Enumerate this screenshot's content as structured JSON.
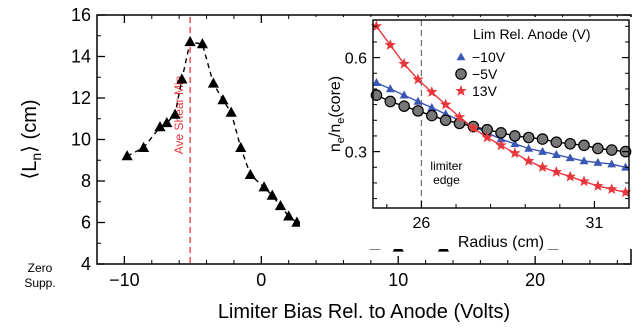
{
  "chart_data": [
    {
      "type": "line",
      "title": "",
      "xlabel": "Limiter Bias Rel. to Anode (Volts)",
      "ylabel": "⟨L_n⟩ (cm)",
      "ylabel_base": "⟨L",
      "ylabel_sub": "n",
      "ylabel_rest": "⟩ (cm)",
      "xlim": [
        -12,
        27
      ],
      "ylim": [
        4,
        16
      ],
      "xticks": [
        -10,
        0,
        10,
        20
      ],
      "yticks": [
        4,
        6,
        8,
        10,
        12,
        14,
        16
      ],
      "tick_labels_x": [
        "−10",
        "0",
        "10",
        "20"
      ],
      "tick_labels_y": [
        "4",
        "6",
        "8",
        "10",
        "12",
        "14",
        "16"
      ],
      "grid": false,
      "series": [
        {
          "style": "dashed",
          "marker": "triangle",
          "color": "#000000",
          "x": [
            -9.8,
            -8.6,
            -7.4,
            -6.9,
            -6.3,
            -5.8,
            -5.2,
            -4.3,
            -3.5,
            -2.8,
            -2.2,
            -1.5,
            -0.8,
            0.2,
            0.8,
            1.4,
            2.0,
            2.6,
            3.2,
            3.8,
            4.4,
            5.0,
            5.6,
            6.2,
            6.8,
            8.3,
            10.0,
            13.3,
            21.3,
            26.0
          ],
          "y": [
            9.2,
            9.6,
            10.6,
            10.8,
            11.2,
            12.9,
            14.7,
            14.6,
            12.7,
            11.9,
            11.3,
            9.6,
            8.3,
            7.7,
            7.3,
            6.8,
            6.3,
            6.0,
            5.9,
            5.85,
            5.8,
            5.8,
            5.7,
            5.5,
            5.4,
            4.9,
            4.8,
            4.8,
            4.9,
            5.3
          ]
        }
      ],
      "annotations": [
        {
          "text": "Ave Shear Min",
          "x": -5.2,
          "color": "#e8373c",
          "style": "dashed-vertical"
        },
        {
          "text": "Zero",
          "role": "corner-label-line1"
        },
        {
          "text": "Supp.",
          "role": "corner-label-line2"
        }
      ]
    },
    {
      "type": "line",
      "title": "",
      "xlabel": "Radius (cm)",
      "ylabel": "n_e/n_e(core)",
      "ylabel_parts": [
        "n",
        "e",
        "/n",
        "e",
        "(core)"
      ],
      "xlim": [
        24.6,
        32.0
      ],
      "ylim": [
        0.12,
        0.72
      ],
      "xticks": [
        26,
        31
      ],
      "yticks": [
        0.3,
        0.6
      ],
      "tick_labels_x": [
        "26",
        "31"
      ],
      "tick_labels_y": [
        "0.3",
        "0.6"
      ],
      "legend_title": "Lim Rel. Anode (V)",
      "legend_position": "top-right",
      "series": [
        {
          "name": "−10V",
          "color": "#3a57b5",
          "marker": "triangle",
          "x": [
            24.7,
            25.1,
            25.5,
            25.9,
            26.3,
            26.7,
            27.1,
            27.5,
            27.9,
            28.3,
            28.7,
            29.1,
            29.5,
            29.9,
            30.3,
            30.7,
            31.1,
            31.5,
            31.9
          ],
          "y": [
            0.52,
            0.5,
            0.48,
            0.46,
            0.44,
            0.42,
            0.4,
            0.38,
            0.36,
            0.34,
            0.325,
            0.31,
            0.3,
            0.29,
            0.28,
            0.27,
            0.265,
            0.26,
            0.25
          ]
        },
        {
          "name": "−5V",
          "color": "#000000",
          "marker": "circle",
          "x": [
            24.7,
            25.1,
            25.5,
            25.9,
            26.3,
            26.7,
            27.1,
            27.5,
            27.9,
            28.3,
            28.7,
            29.1,
            29.5,
            29.9,
            30.3,
            30.7,
            31.1,
            31.5,
            31.9
          ],
          "y": [
            0.48,
            0.46,
            0.445,
            0.43,
            0.415,
            0.4,
            0.39,
            0.38,
            0.37,
            0.36,
            0.35,
            0.345,
            0.34,
            0.33,
            0.325,
            0.32,
            0.31,
            0.305,
            0.3
          ]
        },
        {
          "name": "13V",
          "color": "#e8373c",
          "marker": "star",
          "x": [
            24.7,
            25.1,
            25.5,
            25.9,
            26.3,
            26.7,
            27.1,
            27.5,
            27.9,
            28.3,
            28.7,
            29.1,
            29.5,
            29.9,
            30.3,
            30.7,
            31.1,
            31.5,
            31.9
          ],
          "y": [
            0.7,
            0.64,
            0.58,
            0.53,
            0.49,
            0.45,
            0.41,
            0.375,
            0.345,
            0.32,
            0.295,
            0.27,
            0.25,
            0.235,
            0.22,
            0.205,
            0.19,
            0.18,
            0.17
          ]
        }
      ],
      "annotations": [
        {
          "text": "limiter",
          "role": "label-line1"
        },
        {
          "text": "edge",
          "role": "label-line2"
        },
        {
          "x": 26.0,
          "style": "dashed-vertical",
          "color": "#777777"
        }
      ]
    }
  ]
}
